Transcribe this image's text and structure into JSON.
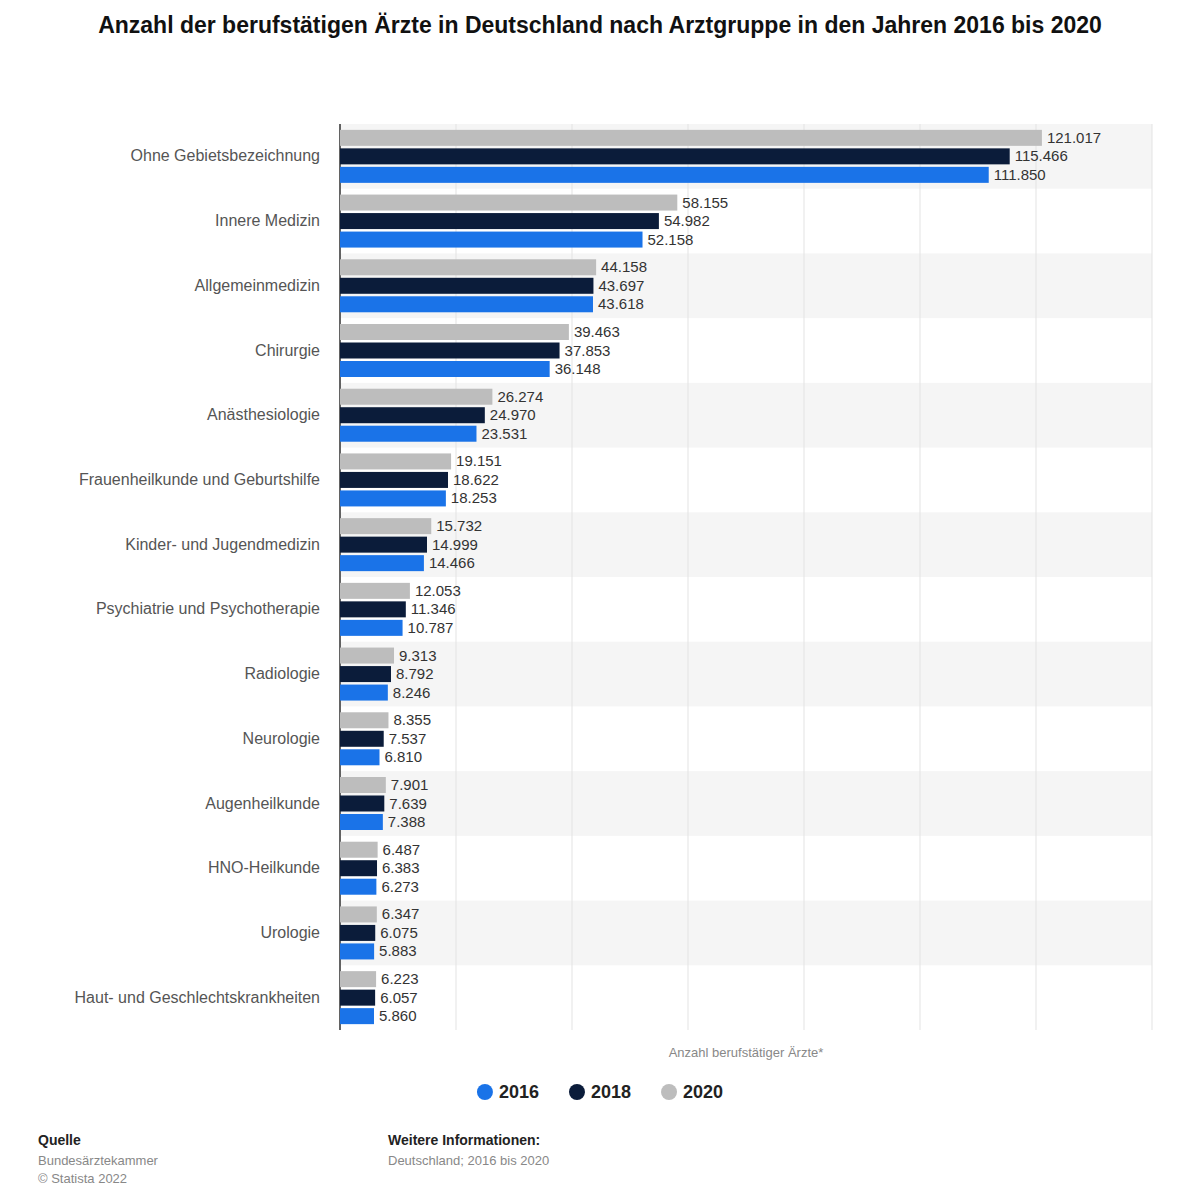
{
  "chart_data": {
    "type": "bar",
    "orientation": "horizontal",
    "title": "Anzahl der berufstätigen Ärzte in Deutschland nach Arztgruppe in den Jahren 2016 bis 2020",
    "x_label": "Anzahl berufstätiger Ärzte*",
    "categories": [
      "Ohne Gebietsbezeichnung",
      "Innere Medizin",
      "Allgemeinmedizin",
      "Chirurgie",
      "Anästhesiologie",
      "Frauenheilkunde und Geburtshilfe",
      "Kinder- und Jugendmedizin",
      "Psychiatrie und Psychotherapie",
      "Radiologie",
      "Neurologie",
      "Augenheilkunde",
      "HNO-Heilkunde",
      "Urologie",
      "Haut- und Geschlechtskrankheiten"
    ],
    "series": [
      {
        "name": "2016",
        "color": "#1a73e8",
        "values": [
          111850,
          52158,
          43618,
          36148,
          23531,
          18253,
          14466,
          10787,
          8246,
          6810,
          7388,
          6273,
          5883,
          5860
        ],
        "value_labels": [
          "111.850",
          "52.158",
          "43.618",
          "36.148",
          "23.531",
          "18.253",
          "14.466",
          "10.787",
          "8.246",
          "6.810",
          "7.388",
          "6.273",
          "5.883",
          "5.860"
        ]
      },
      {
        "name": "2018",
        "color": "#0b1c3a",
        "values": [
          115466,
          54982,
          43697,
          37853,
          24970,
          18622,
          14999,
          11346,
          8792,
          7537,
          7639,
          6383,
          6075,
          6057
        ],
        "value_labels": [
          "115.466",
          "54.982",
          "43.697",
          "37.853",
          "24.970",
          "18.622",
          "14.999",
          "11.346",
          "8.792",
          "7.537",
          "7.639",
          "6.383",
          "6.075",
          "6.057"
        ]
      },
      {
        "name": "2020",
        "color": "#bdbdbd",
        "values": [
          121017,
          58155,
          44158,
          39463,
          26274,
          19151,
          15732,
          12053,
          9313,
          8355,
          7901,
          6487,
          6347,
          6223
        ],
        "value_labels": [
          "121.017",
          "58.155",
          "44.158",
          "39.463",
          "26.274",
          "19.151",
          "15.732",
          "12.053",
          "9.313",
          "8.355",
          "7.901",
          "6.487",
          "6.347",
          "6.223"
        ]
      }
    ],
    "xlim": [
      0,
      140000
    ],
    "xticks": [
      0,
      20000,
      40000,
      60000,
      80000,
      100000,
      120000,
      140000
    ],
    "tick_labels": false,
    "grid": true,
    "data_labels": true,
    "legend": "bottom",
    "source_label": "Quelle",
    "source": "Bundesärztekammer",
    "copyright": "© Statista 2022",
    "info_label": "Weitere Informationen:",
    "info": "Deutschland; 2016 bis 2020"
  }
}
